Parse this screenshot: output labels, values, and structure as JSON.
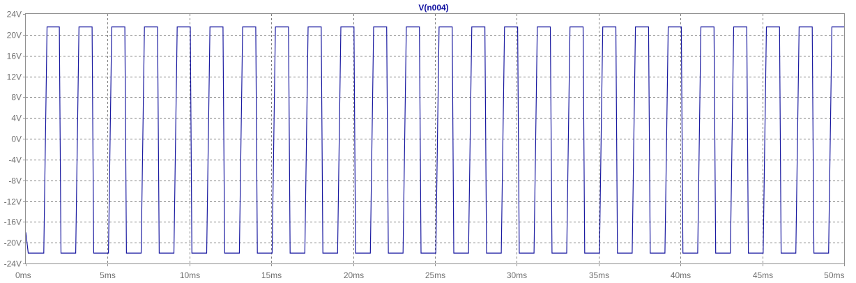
{
  "chart_data": {
    "type": "line",
    "title": "V(n004)",
    "xlabel": "",
    "ylabel": "",
    "xlim": [
      0,
      50
    ],
    "ylim": [
      -24,
      24
    ],
    "x_ticks": [
      0,
      5,
      10,
      15,
      20,
      25,
      30,
      35,
      40,
      45,
      50
    ],
    "x_tick_labels": [
      "0ms",
      "5ms",
      "10ms",
      "15ms",
      "20ms",
      "25ms",
      "30ms",
      "35ms",
      "40ms",
      "45ms",
      "50ms"
    ],
    "y_ticks": [
      24,
      20,
      16,
      12,
      8,
      4,
      0,
      -4,
      -8,
      -12,
      -16,
      -20,
      -24
    ],
    "y_tick_labels": [
      "24V",
      "20V",
      "16V",
      "12V",
      "8V",
      "4V",
      "0V",
      "-4V",
      "-8V",
      "-12V",
      "-16V",
      "-20V",
      "-24V"
    ],
    "grid": true,
    "series": [
      {
        "name": "V(n004)",
        "color": "#1a1aa0",
        "high_level": 21.5,
        "low_level": -22,
        "x": [
          0,
          0.15,
          1.1,
          1.3,
          2.05,
          2.15,
          3.05,
          3.25,
          4.05,
          4.15,
          5.05,
          5.25,
          6.05,
          6.15,
          7.05,
          7.25,
          8.05,
          8.15,
          9.05,
          9.25,
          10.05,
          10.15,
          11.05,
          11.25,
          12.05,
          12.15,
          13.05,
          13.25,
          14.05,
          14.15,
          15.05,
          15.25,
          16.05,
          16.15,
          17.05,
          17.25,
          18.05,
          18.15,
          19.05,
          19.25,
          20.05,
          20.15,
          21.05,
          21.25,
          22.05,
          22.15,
          23.05,
          23.25,
          24.05,
          24.15,
          25.05,
          25.25,
          26.05,
          26.15,
          27.05,
          27.25,
          28.05,
          28.15,
          29.05,
          29.25,
          30.05,
          30.15,
          31.05,
          31.25,
          32.05,
          32.15,
          33.05,
          33.25,
          34.05,
          34.15,
          35.05,
          35.25,
          36.05,
          36.15,
          37.05,
          37.25,
          38.05,
          38.15,
          39.05,
          39.25,
          40.05,
          40.15,
          41.05,
          41.25,
          42.05,
          42.15,
          43.05,
          43.25,
          44.05,
          44.15,
          45.05,
          45.25,
          46.05,
          46.15,
          47.05,
          47.25,
          48.05,
          48.15,
          49.05,
          49.25,
          50
        ],
        "y": [
          -18,
          -22,
          -22,
          21.5,
          21.5,
          -22,
          -22,
          21.5,
          21.5,
          -22,
          -22,
          21.5,
          21.5,
          -22,
          -22,
          21.5,
          21.5,
          -22,
          -22,
          21.5,
          21.5,
          -22,
          -22,
          21.5,
          21.5,
          -22,
          -22,
          21.5,
          21.5,
          -22,
          -22,
          21.5,
          21.5,
          -22,
          -22,
          21.5,
          21.5,
          -22,
          -22,
          21.5,
          21.5,
          -22,
          -22,
          21.5,
          21.5,
          -22,
          -22,
          21.5,
          21.5,
          -22,
          -22,
          21.5,
          21.5,
          -22,
          -22,
          21.5,
          21.5,
          -22,
          -22,
          21.5,
          21.5,
          -22,
          -22,
          21.5,
          21.5,
          -22,
          -22,
          21.5,
          21.5,
          -22,
          -22,
          21.5,
          21.5,
          -22,
          -22,
          21.5,
          21.5,
          -22,
          -22,
          21.5,
          21.5,
          -22,
          -22,
          21.5,
          21.5,
          -22,
          -22,
          21.5,
          21.5,
          -22,
          -22,
          21.5,
          21.5,
          -22,
          -22,
          21.5,
          21.5,
          -22,
          -22,
          21.5,
          21.5
        ]
      }
    ]
  }
}
